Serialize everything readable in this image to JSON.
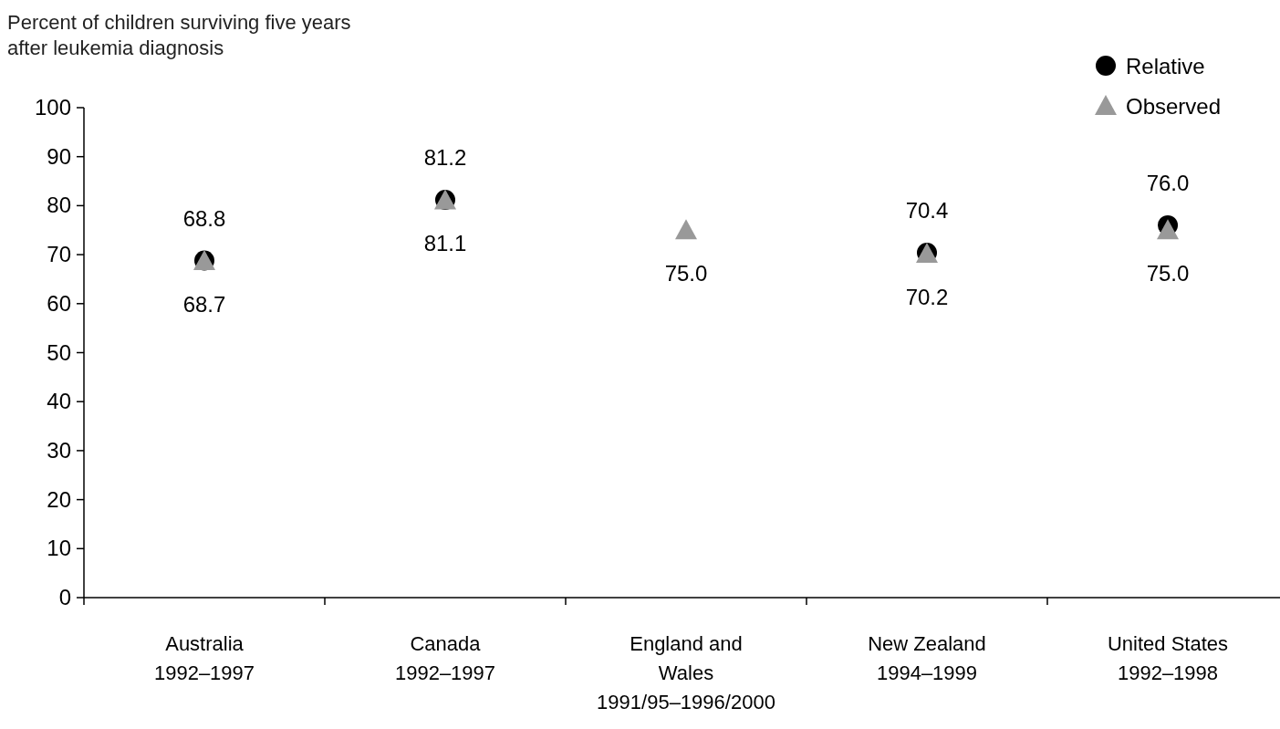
{
  "chart_data": {
    "type": "scatter",
    "title": "Percent of children surviving five years\nafter leukemia diagnosis",
    "categories": [
      "Australia\n1992–1997",
      "Canada\n1992–1997",
      "England and\nWales\n1991/95–1996/2000",
      "New Zealand\n1994–1999",
      "United States\n1992–1998"
    ],
    "series": [
      {
        "name": "Relative",
        "color": "#000000",
        "marker": "circle",
        "values": [
          68.8,
          81.2,
          null,
          70.4,
          76.0
        ],
        "value_labels": [
          "68.8",
          "81.2",
          null,
          "70.4",
          "76.0"
        ]
      },
      {
        "name": "Observed",
        "color": "#999999",
        "marker": "triangle",
        "values": [
          68.7,
          81.1,
          75.0,
          70.2,
          75.0
        ],
        "value_labels": [
          "68.7",
          "81.1",
          "75.0",
          "70.2",
          "75.0"
        ]
      }
    ],
    "ylim": [
      0,
      100
    ],
    "yticks": [
      0,
      10,
      20,
      30,
      40,
      50,
      60,
      70,
      80,
      90,
      100
    ],
    "grid": false,
    "legend": "top right"
  }
}
